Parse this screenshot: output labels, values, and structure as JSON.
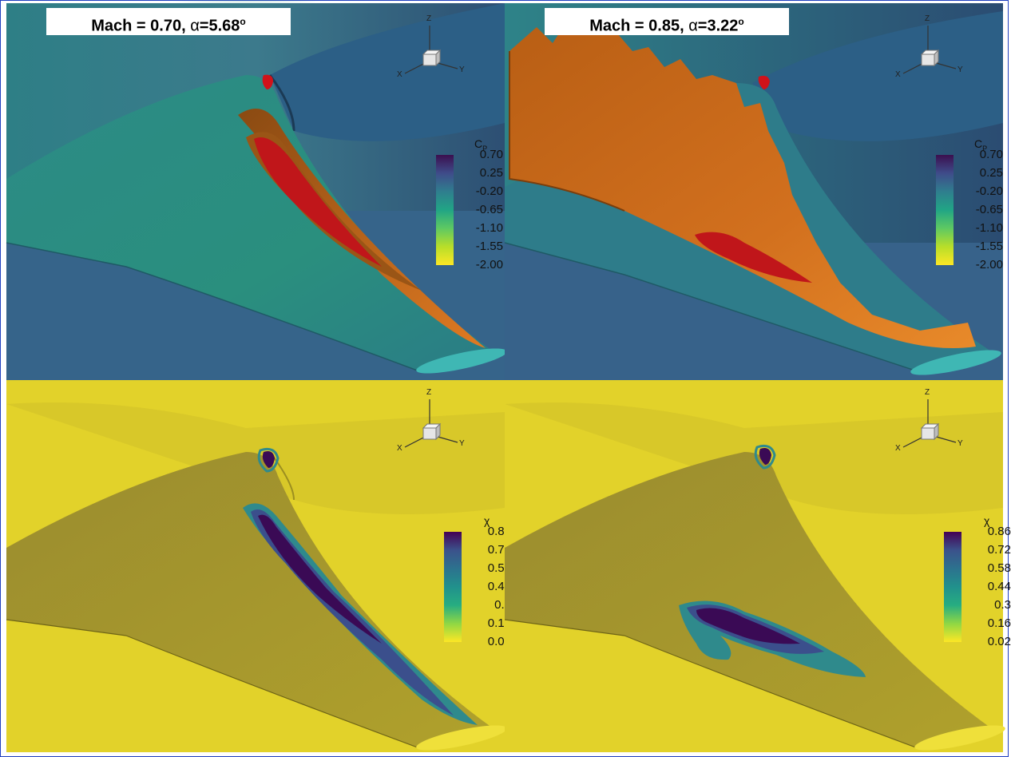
{
  "panels": {
    "top_left": {
      "title_prefix": "Mach = 0.70, ",
      "alpha_symbol": "α",
      "title_eq": "=5.68",
      "degree": "o"
    },
    "top_right": {
      "title_prefix": "Mach = 0.85, ",
      "alpha_symbol": "α",
      "title_eq": "=3.22",
      "degree": "o"
    }
  },
  "axes_labels": {
    "x": "X",
    "y": "Y",
    "z": "Z"
  },
  "legend_cp": {
    "title_main": "C",
    "title_sub": "P",
    "ticks": [
      "0.70",
      "0.25",
      "-0.20",
      "-0.65",
      "-1.10",
      "-1.55",
      "-2.00"
    ],
    "colors": [
      "#3b0f4f",
      "#3f4c8a",
      "#2f7e8e",
      "#21a585",
      "#5ec962",
      "#b8de29",
      "#fde725"
    ]
  },
  "legend_chi": {
    "title": "χ",
    "ticks": [
      "0.86",
      "0.72",
      "0.58",
      "0.44",
      "0.3",
      "0.16",
      "0.02"
    ],
    "colors": [
      "#440154",
      "#3b528b",
      "#2c728e",
      "#21918c",
      "#27ad81",
      "#8fd744",
      "#fde725"
    ]
  },
  "colors": {
    "cp_background": "#3a6a8f",
    "cp_wing": "#2b8a8a",
    "iso_surface": "#d9741f",
    "separation": "#c41a1a",
    "chi_background": "#e2d028",
    "chi_wing": "#a89a2c",
    "chi_core": "#3a0a55",
    "frame": "#1f3fbf"
  }
}
